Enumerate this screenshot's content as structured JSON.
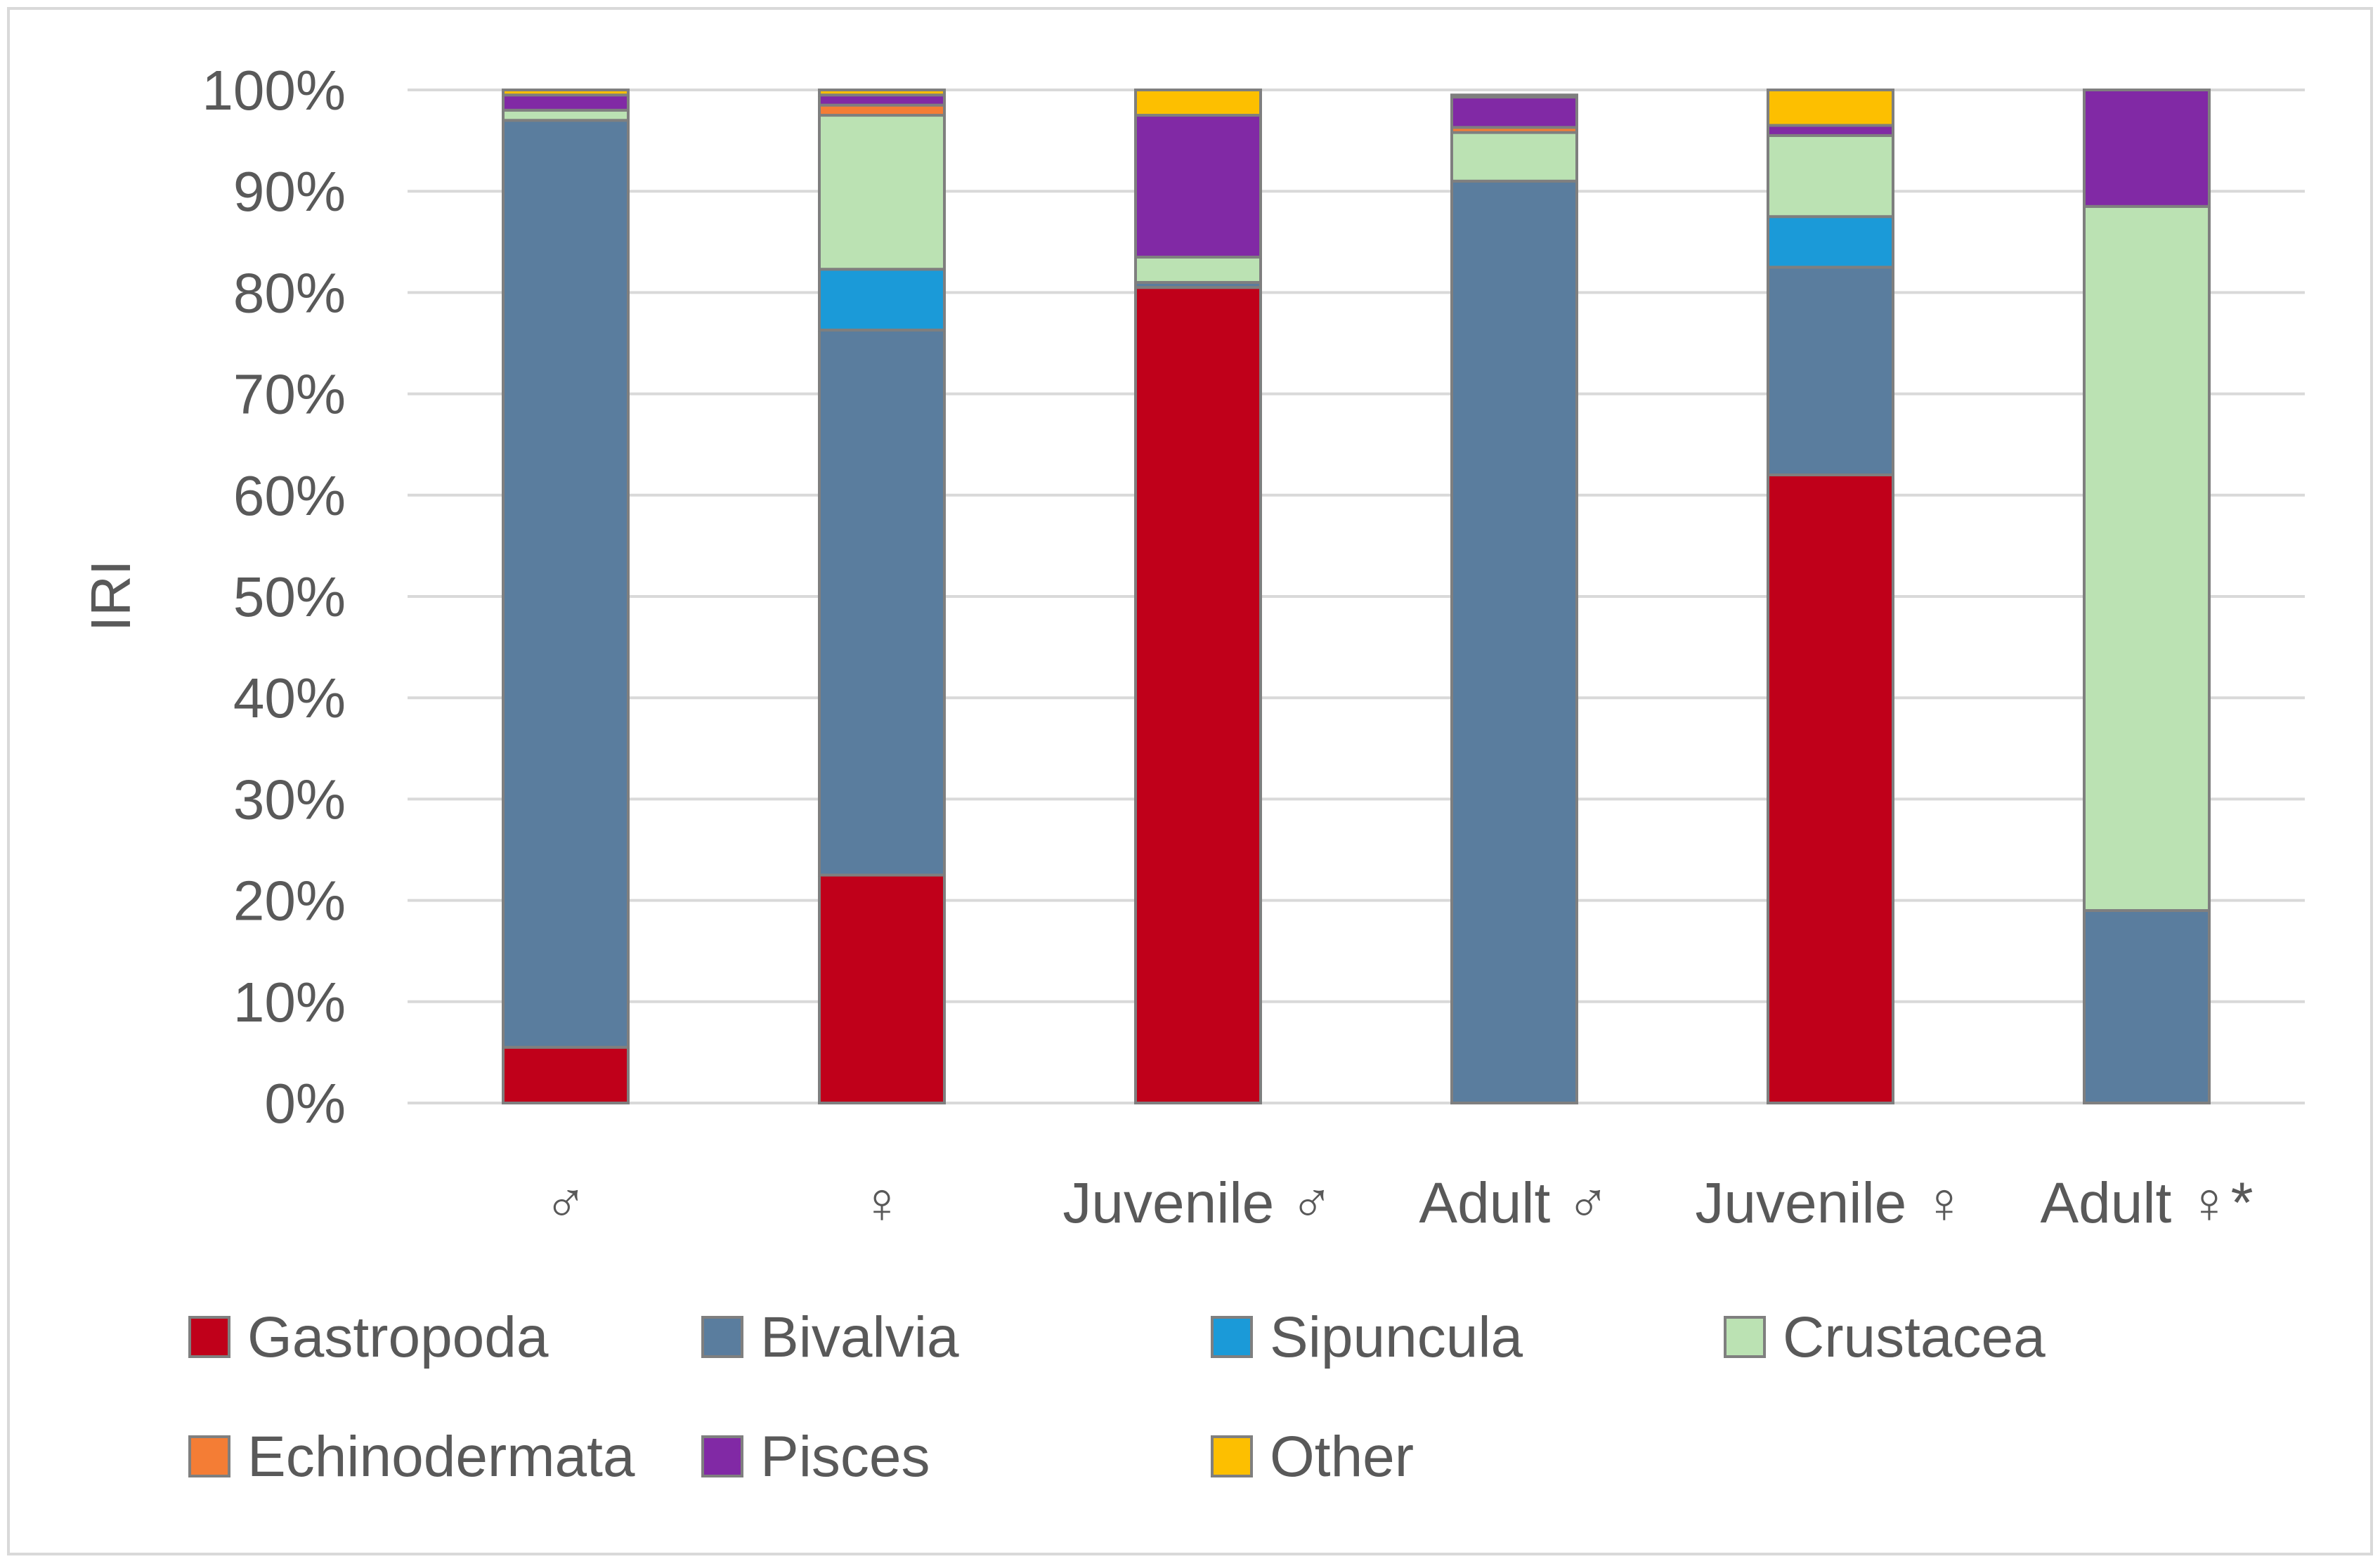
{
  "chart_data": {
    "type": "bar",
    "stacked": true,
    "title": "",
    "xlabel": "",
    "ylabel": "IRI",
    "ylim": [
      0,
      100
    ],
    "ytick_labels": [
      "0%",
      "10%",
      "20%",
      "30%",
      "40%",
      "50%",
      "60%",
      "70%",
      "80%",
      "90%",
      "100%"
    ],
    "grid": true,
    "legend_position": "bottom",
    "categories": [
      "♂",
      "♀",
      "Juvenile ♂",
      "Adult ♂",
      "Juvenile ♀",
      "Adult ♀*"
    ],
    "series": [
      {
        "name": "Gastropoda",
        "color": "#C0001A",
        "values": [
          5.5,
          22.5,
          80.5,
          0,
          62.0,
          0
        ]
      },
      {
        "name": "Bivalvia",
        "color": "#5A7D9E",
        "values": [
          91.5,
          53.8,
          0.5,
          91.0,
          20.5,
          19.0
        ]
      },
      {
        "name": "Sipuncula",
        "color": "#1B9AD8",
        "values": [
          0,
          6.0,
          0,
          0,
          5.0,
          0
        ]
      },
      {
        "name": "Crustacea",
        "color": "#BBE2B3",
        "values": [
          1.0,
          15.2,
          2.5,
          4.8,
          8.0,
          69.5
        ]
      },
      {
        "name": "Echinodermata",
        "color": "#F47D35",
        "values": [
          0,
          1.0,
          0,
          0.5,
          0,
          0
        ]
      },
      {
        "name": "Pisces",
        "color": "#8129A5",
        "values": [
          1.5,
          1.0,
          14.0,
          3.0,
          1.0,
          11.5
        ]
      },
      {
        "name": "Other",
        "color": "#FDBF00",
        "values": [
          0.5,
          0.5,
          2.5,
          0.2,
          3.5,
          0
        ]
      }
    ]
  }
}
